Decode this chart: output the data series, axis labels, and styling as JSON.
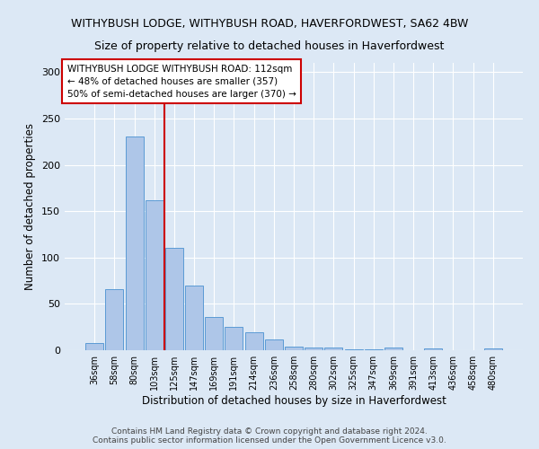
{
  "title": "WITHYBUSH LODGE, WITHYBUSH ROAD, HAVERFORDWEST, SA62 4BW",
  "subtitle": "Size of property relative to detached houses in Haverfordwest",
  "xlabel": "Distribution of detached houses by size in Haverfordwest",
  "ylabel": "Number of detached properties",
  "categories": [
    "36sqm",
    "58sqm",
    "80sqm",
    "103sqm",
    "125sqm",
    "147sqm",
    "169sqm",
    "191sqm",
    "214sqm",
    "236sqm",
    "258sqm",
    "280sqm",
    "302sqm",
    "325sqm",
    "347sqm",
    "369sqm",
    "391sqm",
    "413sqm",
    "436sqm",
    "458sqm",
    "480sqm"
  ],
  "values": [
    8,
    66,
    231,
    162,
    110,
    70,
    36,
    25,
    19,
    12,
    4,
    3,
    3,
    1,
    1,
    3,
    0,
    2,
    0,
    0,
    2
  ],
  "bar_color": "#aec6e8",
  "bar_edge_color": "#5b9bd5",
  "vline_color": "#cc0000",
  "annotation_text": "WITHYBUSH LODGE WITHYBUSH ROAD: 112sqm\n← 48% of detached houses are smaller (357)\n50% of semi-detached houses are larger (370) →",
  "annotation_box_color": "#ffffff",
  "annotation_box_edge": "#cc0000",
  "ylim": [
    0,
    310
  ],
  "yticks": [
    0,
    50,
    100,
    150,
    200,
    250,
    300
  ],
  "bg_color": "#dce8f5",
  "footer": "Contains HM Land Registry data © Crown copyright and database right 2024.\nContains public sector information licensed under the Open Government Licence v3.0.",
  "title_fontsize": 9,
  "subtitle_fontsize": 9,
  "xlabel_fontsize": 8.5,
  "ylabel_fontsize": 8.5,
  "annotation_fontsize": 7.5,
  "footer_fontsize": 6.5
}
